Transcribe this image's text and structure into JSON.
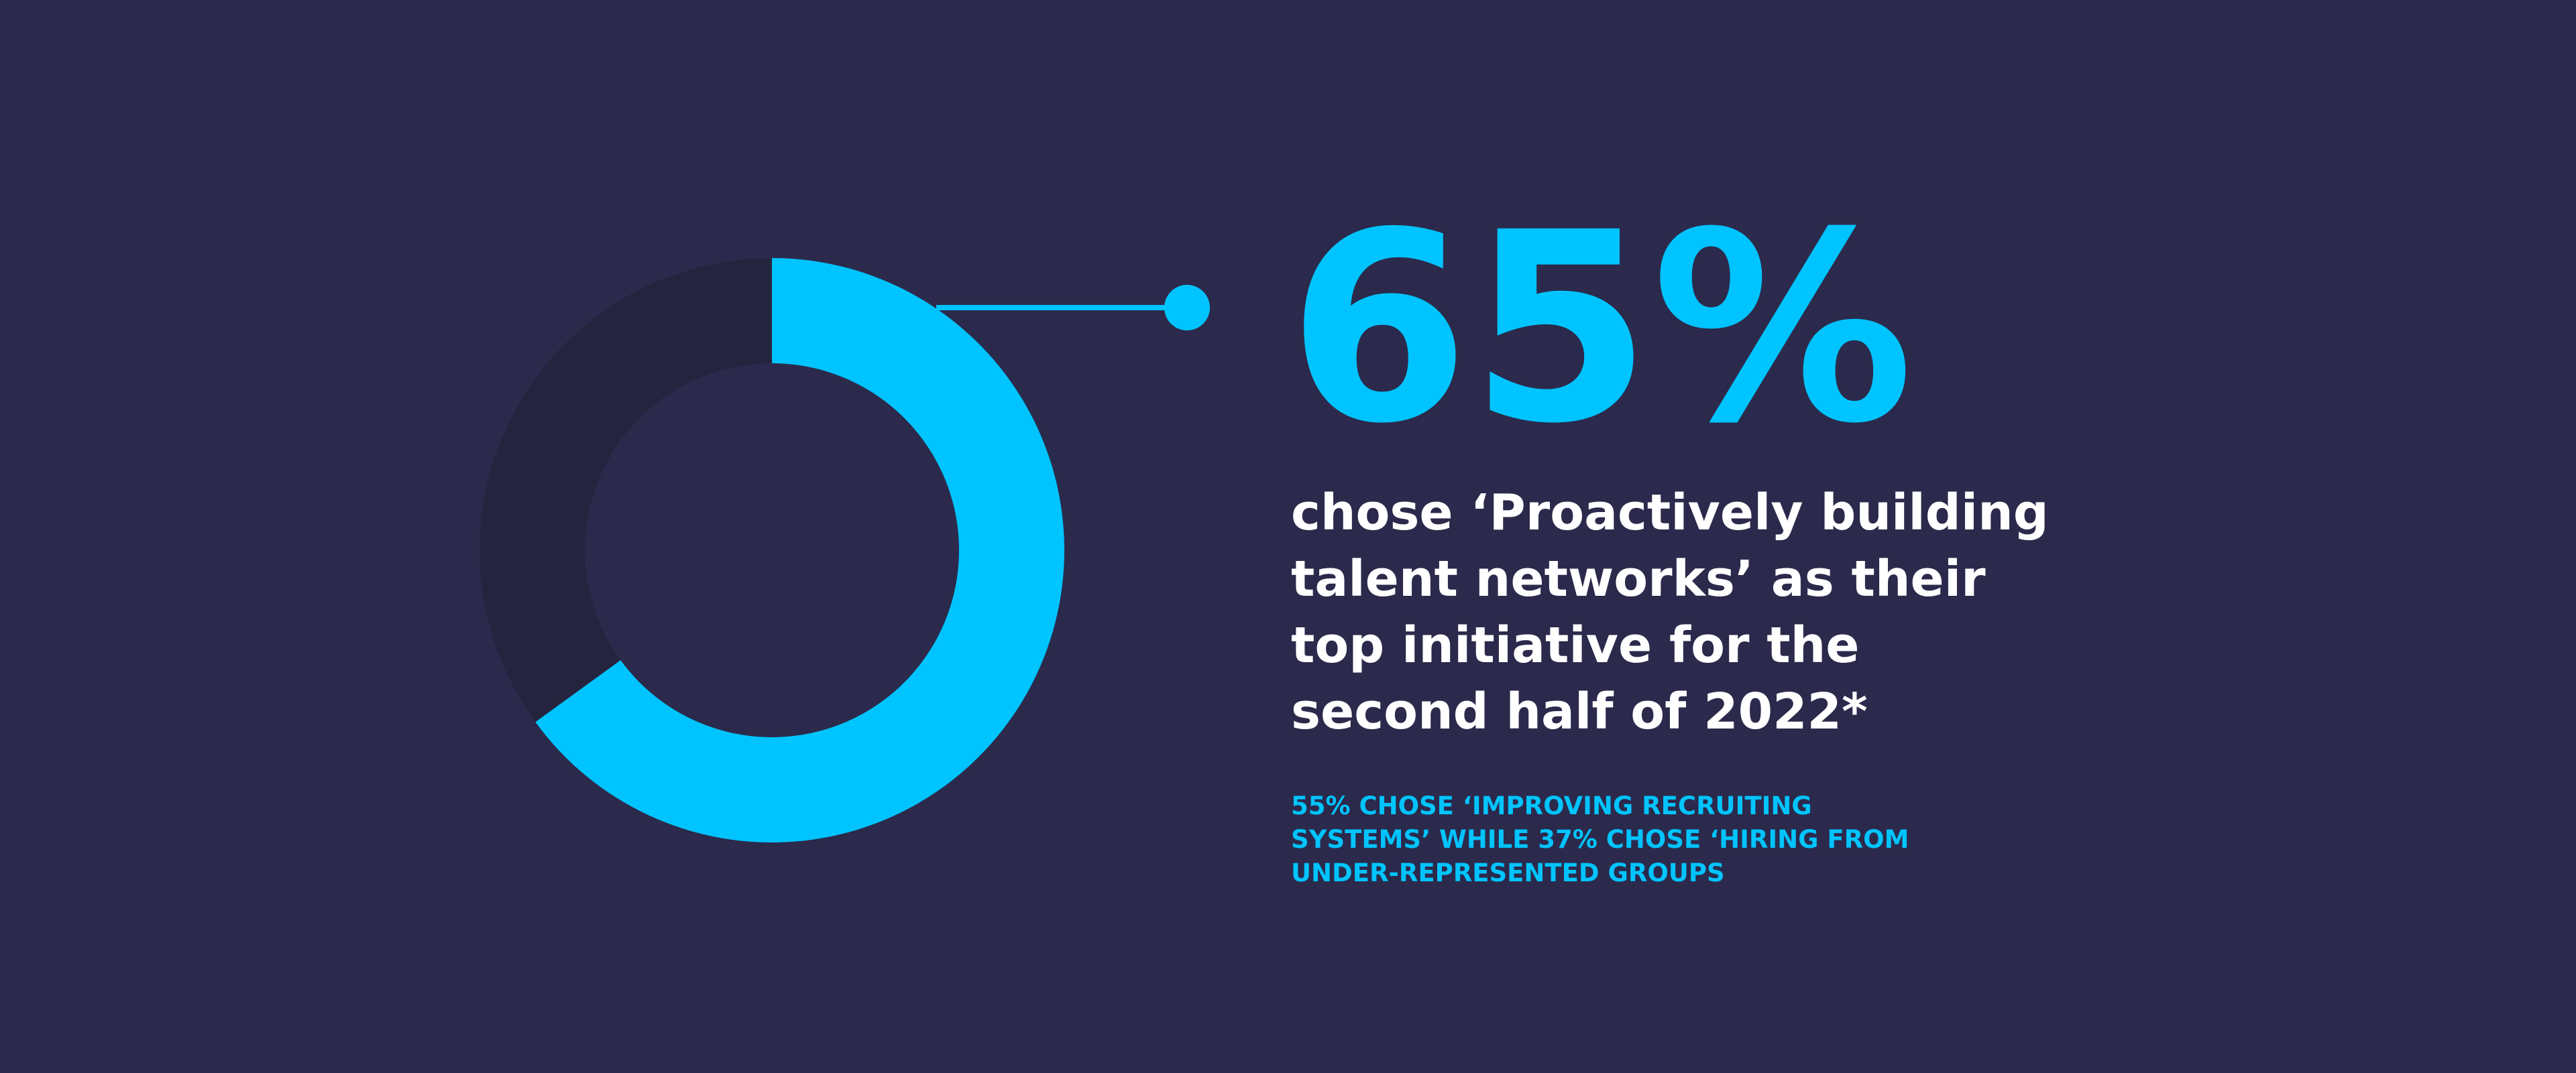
{
  "chart_data": {
    "type": "donut",
    "values": [
      65,
      35
    ],
    "value_labels": [
      "65%",
      null
    ],
    "colors": [
      "#00c4ff",
      "#25243f"
    ],
    "subtitle": [
      "chose ‘Proactively building",
      "talent networks’ as their",
      "top initiative for the",
      "second half of 2022*"
    ],
    "note": [
      "55% CHOSE ‘IMPROVING RECRUITING",
      "SYSTEMS’ WHILE 37% CHOSE ‘HIRING FROM",
      "UNDER-REPRESENTED GROUPS"
    ]
  }
}
